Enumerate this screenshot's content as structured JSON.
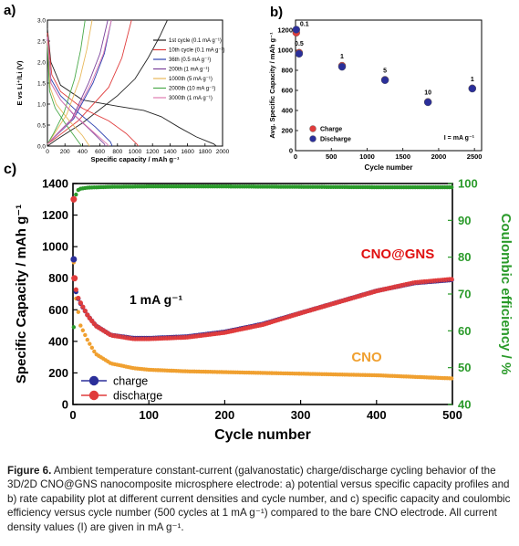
{
  "caption": {
    "label": "Figure 6.",
    "text": "Ambient temperature constant-current (galvanostatic) charge/discharge cycling behavior of the 3D/2D CNO@GNS nanocomposite microsphere electrode: a) potential versus specific capacity profiles and b) rate capability plot at different current densities and cycle number, and c) specific capacity and coulombic efficiency versus cycle number (500 cycles at 1 mA g⁻¹) compared to the bare CNO electrode. All current density values (I) are given in mA g⁻¹."
  },
  "chart_data": [
    {
      "panel": "a)",
      "type": "line",
      "xlabel": "Specific capacity / mAh g⁻¹",
      "ylabel": "E vs Li⁺/Li (V)",
      "xlim": [
        0,
        2000
      ],
      "ylim": [
        0,
        3.0
      ],
      "xticks": [
        "0",
        "200",
        "400",
        "600",
        "800",
        "1000",
        "1200",
        "1400",
        "1600",
        "1800",
        "2000"
      ],
      "yticks": [
        "0.0",
        "0.5",
        "1.0",
        "1.5",
        "2.0",
        "2.5",
        "3.0"
      ],
      "legend_position": "right",
      "series": [
        {
          "name": "1st cycle (0.1 mA g⁻¹)",
          "color": "#222222",
          "discharge": [
            [
              0,
              2.8
            ],
            [
              40,
              2.0
            ],
            [
              150,
              1.45
            ],
            [
              400,
              1.1
            ],
            [
              800,
              0.95
            ],
            [
              1100,
              0.85
            ],
            [
              1300,
              0.7
            ],
            [
              1500,
              0.45
            ],
            [
              1700,
              0.22
            ],
            [
              1900,
              0.05
            ],
            [
              1930,
              0.0
            ]
          ],
          "charge": [
            [
              0,
              0.0
            ],
            [
              100,
              0.15
            ],
            [
              400,
              0.55
            ],
            [
              800,
              1.2
            ],
            [
              1000,
              1.6
            ],
            [
              1150,
              2.1
            ],
            [
              1280,
              2.6
            ],
            [
              1370,
              3.0
            ]
          ]
        },
        {
          "name": "10th cycle (0.1 mA g⁻¹)",
          "color": "#e03c3c",
          "discharge": [
            [
              0,
              2.7
            ],
            [
              50,
              1.7
            ],
            [
              150,
              1.3
            ],
            [
              400,
              0.9
            ],
            [
              700,
              0.6
            ],
            [
              900,
              0.3
            ],
            [
              1020,
              0.05
            ],
            [
              1040,
              0.0
            ]
          ],
          "charge": [
            [
              0,
              0.05
            ],
            [
              100,
              0.2
            ],
            [
              350,
              0.6
            ],
            [
              700,
              1.4
            ],
            [
              850,
              2.1
            ],
            [
              960,
              3.0
            ]
          ]
        },
        {
          "name": "36th (0.5 mA g⁻¹)",
          "color": "#2b3fb0",
          "discharge": [
            [
              0,
              2.6
            ],
            [
              40,
              1.6
            ],
            [
              150,
              1.2
            ],
            [
              350,
              0.8
            ],
            [
              550,
              0.45
            ],
            [
              720,
              0.1
            ],
            [
              740,
              0.0
            ]
          ],
          "charge": [
            [
              0,
              0.05
            ],
            [
              100,
              0.25
            ],
            [
              300,
              0.65
            ],
            [
              520,
              1.5
            ],
            [
              650,
              2.2
            ],
            [
              730,
              3.0
            ]
          ]
        },
        {
          "name": "200th (1 mA g⁻¹)",
          "color": "#7a3f9a",
          "discharge": [
            [
              0,
              2.6
            ],
            [
              40,
              1.5
            ],
            [
              150,
              1.1
            ],
            [
              300,
              0.75
            ],
            [
              480,
              0.4
            ],
            [
              650,
              0.05
            ],
            [
              660,
              0.0
            ]
          ],
          "charge": [
            [
              0,
              0.05
            ],
            [
              90,
              0.25
            ],
            [
              280,
              0.65
            ],
            [
              470,
              1.5
            ],
            [
              600,
              2.2
            ],
            [
              690,
              3.0
            ]
          ]
        },
        {
          "name": "1000th (5 mA g⁻¹)",
          "color": "#e8b85a",
          "discharge": [
            [
              0,
              2.5
            ],
            [
              30,
              1.4
            ],
            [
              100,
              1.0
            ],
            [
              250,
              0.6
            ],
            [
              400,
              0.25
            ],
            [
              480,
              0.0
            ]
          ],
          "charge": [
            [
              0,
              0.05
            ],
            [
              80,
              0.3
            ],
            [
              220,
              0.75
            ],
            [
              370,
              1.6
            ],
            [
              450,
              2.3
            ],
            [
              510,
              3.0
            ]
          ]
        },
        {
          "name": "2000th (10 mA g⁻¹)",
          "color": "#4aaa4a",
          "discharge": [
            [
              0,
              2.4
            ],
            [
              25,
              1.3
            ],
            [
              90,
              0.9
            ],
            [
              200,
              0.55
            ],
            [
              320,
              0.2
            ],
            [
              390,
              0.0
            ]
          ],
          "charge": [
            [
              0,
              0.05
            ],
            [
              70,
              0.3
            ],
            [
              190,
              0.8
            ],
            [
              310,
              1.6
            ],
            [
              380,
              2.3
            ],
            [
              430,
              3.0
            ]
          ]
        },
        {
          "name": "3000th (1 mA g⁻¹)",
          "color": "#e07ab0",
          "discharge": [
            [
              0,
              2.6
            ],
            [
              40,
              1.5
            ],
            [
              150,
              1.1
            ],
            [
              320,
              0.72
            ],
            [
              500,
              0.38
            ],
            [
              680,
              0.05
            ],
            [
              700,
              0.0
            ]
          ],
          "charge": [
            [
              0,
              0.05
            ],
            [
              95,
              0.25
            ],
            [
              290,
              0.65
            ],
            [
              500,
              1.5
            ],
            [
              640,
              2.2
            ],
            [
              730,
              3.0
            ]
          ]
        }
      ]
    },
    {
      "panel": "b)",
      "type": "scatter",
      "xlabel": "Cycle number",
      "ylabel": "Avg. Specific Capacity / mAh g⁻¹",
      "xlim": [
        0,
        2600
      ],
      "ylim": [
        0,
        1300
      ],
      "xticks": [
        "0",
        "500",
        "1000",
        "1500",
        "2000",
        "2500"
      ],
      "yticks": [
        "0",
        "200",
        "400",
        "600",
        "800",
        "1000",
        "1200"
      ],
      "legend_position": "bottom-left",
      "note": "I = mA g⁻¹",
      "series": [
        {
          "name": "Charge",
          "color": "#e03c3c",
          "points": [
            [
              10,
              1175
            ],
            [
              50,
              975
            ],
            [
              650,
              845
            ],
            [
              1250,
              705
            ],
            [
              1850,
              485
            ],
            [
              2470,
              620
            ]
          ]
        },
        {
          "name": "Discharge",
          "color": "#2b2f9a",
          "points": [
            [
              10,
              1205
            ],
            [
              50,
              965
            ],
            [
              650,
              835
            ],
            [
              1250,
              702
            ],
            [
              1850,
              482
            ],
            [
              2470,
              618
            ]
          ]
        }
      ],
      "annotations": [
        {
          "text": "0.1",
          "x": 10,
          "y": 1205
        },
        {
          "text": "0.5",
          "x": 50,
          "y": 965
        },
        {
          "text": "1",
          "x": 650,
          "y": 845
        },
        {
          "text": "5",
          "x": 1250,
          "y": 705
        },
        {
          "text": "10",
          "x": 1850,
          "y": 485
        },
        {
          "text": "1",
          "x": 2470,
          "y": 620
        }
      ]
    },
    {
      "panel": "c)",
      "type": "scatter",
      "xlabel": "Cycle number",
      "ylabel": "Specific Capacity / mAh g⁻¹",
      "y2label": "Coulombic efficiency / %",
      "xlim": [
        0,
        500
      ],
      "ylim": [
        0,
        1400
      ],
      "y2lim": [
        40,
        100
      ],
      "xticks": [
        "0",
        "100",
        "200",
        "300",
        "400",
        "500"
      ],
      "yticks": [
        "0",
        "200",
        "400",
        "600",
        "800",
        "1000",
        "1200",
        "1400"
      ],
      "y2ticks": [
        "40",
        "50",
        "60",
        "70",
        "80",
        "90",
        "100"
      ],
      "legend_position": "bottom-left",
      "annotations": [
        {
          "text": "CNO@GNS",
          "color": "#e01010"
        },
        {
          "text": "CNO",
          "color": "#f0a030"
        },
        {
          "text": "1 mA g⁻¹",
          "color": "#000000"
        }
      ],
      "series": [
        {
          "name": "charge",
          "color": "#2b2f9a",
          "points": [
            [
              1,
              920
            ],
            [
              2,
              760
            ],
            [
              5,
              690
            ],
            [
              10,
              640
            ],
            [
              20,
              560
            ],
            [
              30,
              500
            ],
            [
              50,
              440
            ],
            [
              80,
              420
            ],
            [
              100,
              420
            ],
            [
              150,
              430
            ],
            [
              200,
              460
            ],
            [
              250,
              510
            ],
            [
              300,
              580
            ],
            [
              350,
              650
            ],
            [
              400,
              720
            ],
            [
              450,
              770
            ],
            [
              500,
              790
            ]
          ]
        },
        {
          "name": "discharge",
          "color": "#e03c3c",
          "points": [
            [
              1,
              1300
            ],
            [
              2,
              800
            ],
            [
              5,
              700
            ],
            [
              10,
              650
            ],
            [
              20,
              565
            ],
            [
              30,
              505
            ],
            [
              50,
              445
            ],
            [
              80,
              422
            ],
            [
              100,
              422
            ],
            [
              150,
              432
            ],
            [
              200,
              462
            ],
            [
              250,
              512
            ],
            [
              300,
              585
            ],
            [
              350,
              655
            ],
            [
              400,
              725
            ],
            [
              450,
              778
            ],
            [
              500,
              800
            ]
          ]
        },
        {
          "name": "CNO",
          "color": "#f0a030",
          "points": [
            [
              1,
              900
            ],
            [
              3,
              700
            ],
            [
              10,
              500
            ],
            [
              20,
              400
            ],
            [
              30,
              320
            ],
            [
              50,
              260
            ],
            [
              80,
              230
            ],
            [
              100,
              220
            ],
            [
              150,
              210
            ],
            [
              200,
              205
            ],
            [
              300,
              195
            ],
            [
              400,
              185
            ],
            [
              500,
              165
            ]
          ]
        },
        {
          "name": "Coulombic efficiency",
          "color": "#2a9a2a",
          "axis": "right",
          "points": [
            [
              1,
              61
            ],
            [
              3,
              96
            ],
            [
              5,
              98
            ],
            [
              10,
              98.6
            ],
            [
              20,
              98.9
            ],
            [
              50,
              99.1
            ],
            [
              100,
              99.2
            ],
            [
              200,
              99.2
            ],
            [
              300,
              99.1
            ],
            [
              400,
              99.0
            ],
            [
              500,
              99.0
            ]
          ]
        }
      ]
    }
  ]
}
